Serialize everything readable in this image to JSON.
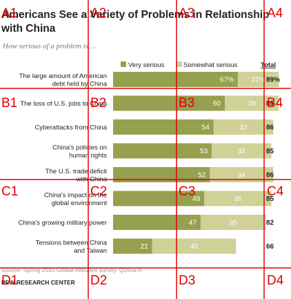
{
  "chart_data": {
    "type": "bar",
    "stacked": true,
    "orientation": "horizontal",
    "title_line1": "Americans See a Variety of Problems in Relationship",
    "title_line2": "with China",
    "subtitle": "How serious of a problem is …",
    "legend": {
      "very": "Very serious",
      "somewhat": "Somewhat serious",
      "total": "Total"
    },
    "categories": [
      [
        "The large amount of American",
        "debt held by China"
      ],
      [
        "The loss of U.S. jobs to China"
      ],
      [
        "Cyberattacks from China"
      ],
      [
        "China's policies on",
        "human rights"
      ],
      [
        "The U.S. trade deficit",
        "with China"
      ],
      [
        "China's impact on the",
        "global environment"
      ],
      [
        "China's growing military power"
      ],
      [
        "Tensions between China",
        "and Taiwan"
      ]
    ],
    "series": [
      {
        "name": "Very serious",
        "values": [
          67,
          60,
          54,
          53,
          52,
          49,
          47,
          21
        ],
        "labels": [
          "67%",
          "60",
          "54",
          "53",
          "52",
          "49",
          "47",
          "21"
        ]
      },
      {
        "name": "Somewhat serious",
        "values": [
          22,
          29,
          32,
          32,
          34,
          36,
          35,
          45
        ],
        "labels": [
          "22%",
          "29",
          "32",
          "32",
          "34",
          "36",
          "35",
          "45"
        ]
      }
    ],
    "totals": [
      "89%",
      "89",
      "86",
      "85",
      "86",
      "85",
      "82",
      "66"
    ],
    "source": "Source: Spring 2015 Global Attitudes survey. Q26xa-h.",
    "organization": "PEW RESEARCH CENTER",
    "colors": {
      "very": "#96a04f",
      "somewhat": "#cfd197"
    }
  },
  "overlay": {
    "cells": [
      "A1",
      "A2",
      "A3",
      "A4",
      "B1",
      "B2",
      "B3",
      "B4",
      "C1",
      "C2",
      "C3",
      "C4",
      "D1",
      "D2",
      "D3",
      "D4"
    ],
    "color": "#e00000"
  }
}
